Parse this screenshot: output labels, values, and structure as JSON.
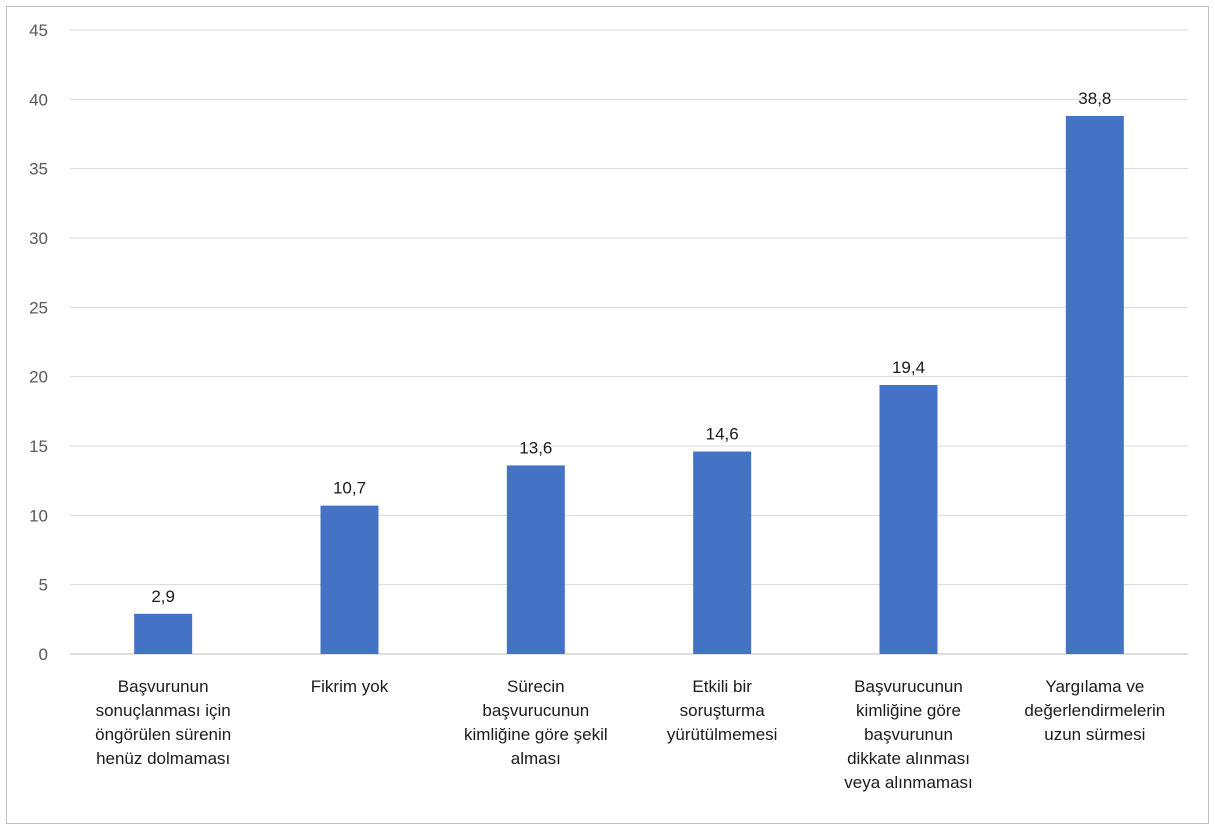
{
  "chart_data": {
    "type": "bar",
    "categories": [
      [
        "Başvurunun",
        "sonuçlanması için",
        "öngörülen sürenin",
        "henüz dolmaması"
      ],
      [
        "Fikrim yok"
      ],
      [
        "Sürecin",
        "başvurucunun",
        "kimliğine göre şekil",
        "alması"
      ],
      [
        "Etkili bir",
        "soruşturma",
        "yürütülmemesi"
      ],
      [
        "Başvurucunun",
        "kimliğine göre",
        "başvurunun",
        "dikkate alınması",
        "veya alınmaması"
      ],
      [
        "Yargılama ve",
        "değerlendirmelerin",
        "uzun sürmesi"
      ]
    ],
    "values": [
      2.9,
      10.7,
      13.6,
      14.6,
      19.4,
      38.8
    ],
    "data_labels": [
      "2,9",
      "10,7",
      "13,6",
      "14,6",
      "19,4",
      "38,8"
    ],
    "ylim": [
      0,
      45
    ],
    "yticks": [
      "0",
      "5",
      "10",
      "15",
      "20",
      "25",
      "30",
      "35",
      "40",
      "45"
    ],
    "grid": true,
    "bar_color": "#4472c4",
    "grid_color": "#d9d9d9"
  }
}
